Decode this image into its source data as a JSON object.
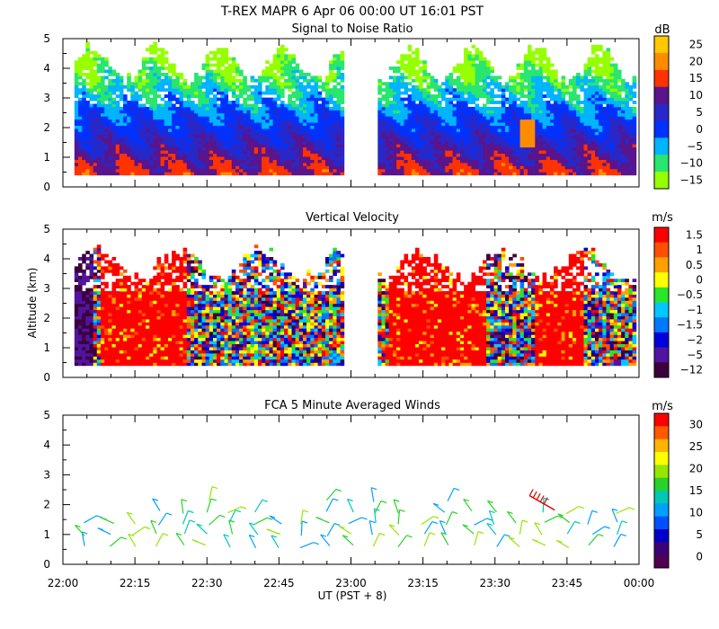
{
  "chart_data": {
    "type": "heatmap",
    "title": "T-REX   MAPR   6 Apr 06   00:00 UT   16:01   PST",
    "xlabel": "UT  (PST + 8)",
    "x_ticks": [
      "22:00",
      "22:15",
      "22:30",
      "22:45",
      "23:00",
      "23:15",
      "23:30",
      "23:45",
      "00:00"
    ],
    "xlim_hours_ut": [
      22.0,
      24.0
    ],
    "data_gap_hours_ut": [
      22.98,
      23.08
    ],
    "panels": [
      {
        "title": "Signal to Noise Ratio",
        "type": "heatmap",
        "ylabel": "",
        "ylim_km": [
          0,
          5
        ],
        "y_ticks": [
          "0",
          "1",
          "2",
          "3",
          "4",
          "5"
        ],
        "unit": "dB",
        "colorbar_labels": [
          "25",
          "20",
          "15",
          "10",
          "5",
          "0",
          "−5",
          "−10",
          "−15"
        ],
        "colorbar_colors": [
          "#ffc800",
          "#ff8c00",
          "#ff3200",
          "#5a148c",
          "#2828c8",
          "#0032ff",
          "#00b4ff",
          "#28e66e",
          "#96ff00"
        ],
        "summary": "Strongest signal (10 to 15 dB) below 1 km; values fall to about -10 to -15 dB near 3 to 4.5 km; isolated 15 dB maximum near 2 km around 23:37 UT."
      },
      {
        "title": "Vertical Velocity",
        "type": "heatmap",
        "ylabel": "Altitude (km)",
        "ylim_km": [
          0,
          5
        ],
        "y_ticks": [
          "0",
          "1",
          "2",
          "3",
          "4",
          "5"
        ],
        "unit": "m/s",
        "colorbar_labels": [
          "1.5",
          "1",
          "0.5",
          "0",
          "−0.5",
          "−1",
          "−1.5",
          "−2",
          "−5",
          "−12"
        ],
        "colorbar_colors": [
          "#ff0000",
          "#ff5000",
          "#ffa000",
          "#ffff00",
          "#28e628",
          "#00c8ff",
          "#0078ff",
          "#0000dc",
          "#5014a0",
          "#3c003c"
        ],
        "summary": "Predominantly strong upward motion (about 1.5 m/s) from 22:10 to 22:40 and 23:10 to 23:45 UT; strong downward motion (-5 to -12 m/s) near 22:00 to 22:05 UT and in patches near 3.5 km."
      },
      {
        "title": "FCA 5 Minute Averaged Winds",
        "type": "barbs",
        "ylabel": "",
        "ylim_km": [
          0,
          5
        ],
        "y_ticks": [
          "0",
          "1",
          "2",
          "3",
          "4",
          "5"
        ],
        "unit": "m/s",
        "colorbar_labels": [
          "30",
          "25",
          "20",
          "15",
          "10",
          "5",
          "0"
        ],
        "colorbar_colors": [
          "#ff0000",
          "#ff5a00",
          "#ffb400",
          "#ffff00",
          "#96e600",
          "#28d228",
          "#00c8b4",
          "#00a0ff",
          "#0050ff",
          "#0000c8",
          "#3c0078",
          "#500050"
        ],
        "barb_times_hours_ut": [
          22.08,
          22.17,
          22.25,
          22.33,
          22.42,
          22.5,
          22.58,
          22.67,
          22.75,
          22.83,
          22.92,
          23.0,
          23.08,
          23.17,
          23.25,
          23.33,
          23.42,
          23.5,
          23.58,
          23.67,
          23.75,
          23.83,
          23.92
        ],
        "summary": "Winds mostly 5 to 15 m/s from 0.5 to 2 km; peak near 30 m/s at about 2.3 km around 23:37 UT."
      }
    ]
  }
}
